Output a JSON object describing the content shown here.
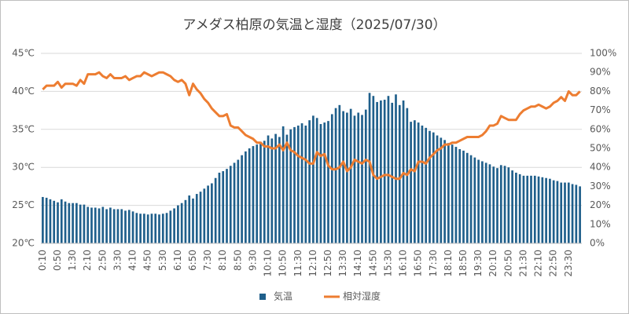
{
  "chart_data": {
    "type": "bar-line",
    "title": "アメダス柏原の気温と湿度（2025/07/30）",
    "categories": [
      "0:10",
      null,
      null,
      null,
      "0:50",
      null,
      null,
      null,
      "1:30",
      null,
      null,
      null,
      "2:10",
      null,
      null,
      null,
      "2:50",
      null,
      null,
      null,
      "3:30",
      null,
      null,
      null,
      "4:10",
      null,
      null,
      null,
      "4:50",
      null,
      null,
      null,
      "5:30",
      null,
      null,
      null,
      "6:10",
      null,
      null,
      null,
      "6:50",
      null,
      null,
      null,
      "7:30",
      null,
      null,
      null,
      "8:10",
      null,
      null,
      null,
      "8:50",
      null,
      null,
      null,
      "9:30",
      null,
      null,
      null,
      "10:10",
      null,
      null,
      null,
      "10:50",
      null,
      null,
      null,
      "11:30",
      null,
      null,
      null,
      "12:10",
      null,
      null,
      null,
      "12:50",
      null,
      null,
      null,
      "13:30",
      null,
      null,
      null,
      "14:10",
      null,
      null,
      null,
      "14:50",
      null,
      null,
      null,
      "15:30",
      null,
      null,
      null,
      "16:10",
      null,
      null,
      null,
      "16:50",
      null,
      null,
      null,
      "17:30",
      null,
      null,
      null,
      "18:10",
      null,
      null,
      null,
      "18:50",
      null,
      null,
      null,
      "19:30",
      null,
      null,
      null,
      "20:10",
      null,
      null,
      null,
      "20:50",
      null,
      null,
      null,
      "21:30",
      null,
      null,
      null,
      "22:10",
      null,
      null,
      null,
      "22:50",
      null,
      null,
      null,
      "23:30",
      null,
      null,
      null
    ],
    "series": [
      {
        "name": "気温",
        "type": "bar",
        "color": "#1f5f8b",
        "values": [
          26.1,
          26.0,
          25.8,
          25.6,
          25.4,
          25.8,
          25.5,
          25.3,
          25.3,
          25.3,
          25.1,
          25.1,
          24.8,
          24.7,
          24.7,
          24.6,
          24.8,
          24.5,
          24.7,
          24.5,
          24.5,
          24.5,
          24.3,
          24.4,
          24.2,
          24.0,
          23.9,
          23.9,
          23.8,
          23.9,
          23.9,
          23.8,
          23.9,
          24.0,
          24.3,
          24.6,
          25.0,
          25.3,
          25.7,
          26.3,
          25.9,
          26.5,
          26.8,
          27.2,
          27.6,
          27.9,
          28.6,
          29.3,
          29.5,
          29.8,
          30.2,
          30.6,
          31.0,
          31.6,
          32.1,
          32.5,
          32.8,
          33.0,
          33.2,
          33.5,
          34.2,
          33.8,
          34.4,
          34.0,
          35.4,
          34.3,
          35.0,
          35.3,
          35.5,
          35.8,
          35.5,
          36.2,
          36.8,
          36.5,
          35.7,
          35.9,
          36.1,
          37.0,
          37.8,
          38.2,
          37.4,
          37.2,
          37.7,
          36.8,
          37.2,
          36.9,
          37.6,
          39.8,
          39.4,
          38.6,
          38.8,
          38.9,
          39.4,
          38.5,
          39.6,
          38.2,
          38.8,
          37.8,
          36.0,
          36.2,
          35.9,
          35.5,
          35.2,
          34.8,
          34.6,
          34.2,
          33.9,
          33.6,
          33.2,
          33.0,
          32.7,
          32.4,
          32.2,
          31.9,
          31.6,
          31.3,
          31.0,
          30.8,
          30.6,
          30.4,
          30.1,
          29.9,
          30.3,
          30.2,
          30.0,
          29.6,
          29.3,
          29.1,
          28.9,
          28.9,
          28.9,
          28.9,
          28.8,
          28.7,
          28.6,
          28.5,
          28.3,
          28.2,
          28.0,
          28.0,
          28.0,
          27.8,
          27.7,
          27.5
        ]
      },
      {
        "name": "相対湿度",
        "type": "line",
        "axis": "y2",
        "color": "#ed7d31",
        "values": [
          81,
          83,
          83,
          83,
          85,
          82,
          84,
          84,
          84,
          83,
          86,
          84,
          89,
          89,
          89,
          90,
          88,
          87,
          89,
          87,
          87,
          87,
          88,
          86,
          87,
          88,
          88,
          90,
          89,
          88,
          89,
          90,
          90,
          89,
          88,
          86,
          85,
          86,
          84,
          78,
          84,
          81,
          79,
          76,
          74,
          71,
          69,
          67,
          67,
          68,
          62,
          61,
          61,
          59,
          57,
          56,
          55,
          53,
          53,
          51,
          51,
          50,
          50,
          52,
          49,
          53,
          49,
          48,
          46,
          45,
          44,
          42,
          42,
          48,
          46,
          47,
          41,
          39,
          39,
          40,
          43,
          38,
          40,
          44,
          43,
          42,
          44,
          43,
          36,
          34,
          35,
          36,
          36,
          35,
          34,
          34,
          37,
          36,
          39,
          38,
          43,
          43,
          42,
          45,
          47,
          49,
          50,
          52,
          52,
          53,
          53,
          54,
          55,
          56,
          56,
          56,
          56,
          57,
          59,
          62,
          62,
          63,
          67,
          66,
          65,
          65,
          65,
          68,
          70,
          71,
          72,
          72,
          73,
          72,
          71,
          72,
          74,
          75,
          77,
          75,
          80,
          78,
          78,
          80
        ]
      }
    ],
    "ylim": [
      20,
      45
    ],
    "yticks": [
      {
        "value": 20,
        "label": "20℃"
      },
      {
        "value": 25,
        "label": "25℃"
      },
      {
        "value": 30,
        "label": "30℃"
      },
      {
        "value": 35,
        "label": "35℃"
      },
      {
        "value": 40,
        "label": "40℃"
      },
      {
        "value": 45,
        "label": "45℃"
      }
    ],
    "y2lim": [
      0,
      100
    ],
    "y2ticks": [
      {
        "value": 0,
        "label": "0%"
      },
      {
        "value": 10,
        "label": "10%"
      },
      {
        "value": 20,
        "label": "20%"
      },
      {
        "value": 30,
        "label": "30%"
      },
      {
        "value": 40,
        "label": "40%"
      },
      {
        "value": 50,
        "label": "50%"
      },
      {
        "value": 60,
        "label": "60%"
      },
      {
        "value": 70,
        "label": "70%"
      },
      {
        "value": 80,
        "label": "80%"
      },
      {
        "value": 90,
        "label": "90%"
      },
      {
        "value": 100,
        "label": "100%"
      }
    ],
    "grid": true,
    "legend": "bottom"
  }
}
